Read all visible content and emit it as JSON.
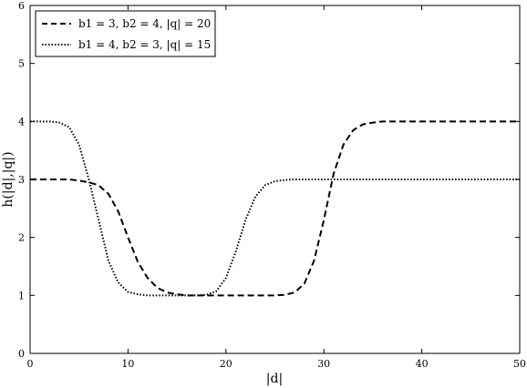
{
  "chart_data": {
    "type": "line",
    "xlabel": "|d|",
    "ylabel": "h(|d|,|q|)",
    "xlim": [
      0,
      50
    ],
    "ylim": [
      0,
      6
    ],
    "xticks": [
      0,
      10,
      20,
      30,
      40,
      50
    ],
    "yticks": [
      0,
      1,
      2,
      3,
      4,
      5,
      6
    ],
    "grid": false,
    "legend_position": "top-left",
    "series": [
      {
        "name": "b1 = 3, b2 = 4, |q| = 20",
        "style": "dashed",
        "color": "#000000",
        "x": [
          0,
          2,
          4,
          5,
          6,
          7,
          8,
          9,
          10,
          11,
          12,
          13,
          14,
          15,
          16,
          17,
          18,
          19,
          20,
          21,
          22,
          23,
          24,
          25,
          26,
          27,
          28,
          29,
          30,
          31,
          32,
          33,
          34,
          35,
          36,
          38,
          40,
          45,
          50
        ],
        "y": [
          3.0,
          3.0,
          3.0,
          2.98,
          2.95,
          2.9,
          2.75,
          2.45,
          2.0,
          1.58,
          1.3,
          1.13,
          1.05,
          1.02,
          1.0,
          1.0,
          1.0,
          1.0,
          1.0,
          1.0,
          1.0,
          1.0,
          1.0,
          1.0,
          1.01,
          1.05,
          1.2,
          1.6,
          2.3,
          3.1,
          3.6,
          3.85,
          3.95,
          3.98,
          4.0,
          4.0,
          4.0,
          4.0,
          4.0
        ]
      },
      {
        "name": "b1 = 4, b2 = 3, |q| = 15",
        "style": "dotted",
        "color": "#000000",
        "x": [
          0,
          2,
          3,
          4,
          5,
          6,
          7,
          8,
          9,
          10,
          11,
          12,
          13,
          14,
          15,
          16,
          17,
          18,
          19,
          20,
          21,
          22,
          23,
          24,
          25,
          26,
          27,
          28,
          29,
          30,
          32,
          35,
          40,
          45,
          50
        ],
        "y": [
          4.0,
          4.0,
          3.98,
          3.9,
          3.6,
          3.0,
          2.3,
          1.6,
          1.22,
          1.06,
          1.02,
          1.0,
          1.0,
          1.0,
          1.0,
          1.0,
          1.0,
          1.01,
          1.07,
          1.3,
          1.75,
          2.3,
          2.7,
          2.9,
          2.97,
          2.99,
          3.0,
          3.0,
          3.0,
          3.0,
          3.0,
          3.0,
          3.0,
          3.0,
          3.0
        ]
      }
    ]
  }
}
